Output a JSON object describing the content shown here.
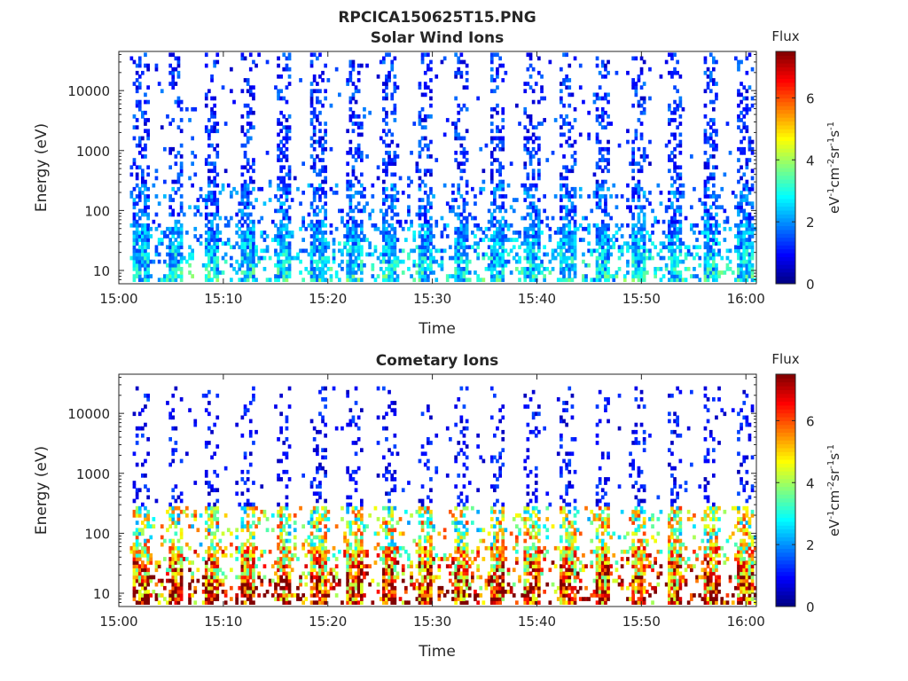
{
  "figure": {
    "title": "RPCICA150625T15.PNG"
  },
  "colors": {
    "axis": "#262626",
    "background": "#ffffff",
    "colormap": [
      "#00007f",
      "#0000ff",
      "#007fff",
      "#00ffff",
      "#7fff7f",
      "#ffff00",
      "#ff7f00",
      "#ff0000",
      "#7f0000"
    ]
  },
  "chart_data": [
    {
      "type": "heatmap",
      "title": "Solar Wind Ions",
      "xlabel": "Time",
      "ylabel": "Energy (eV)",
      "x_ticks": [
        "15:00",
        "15:10",
        "15:20",
        "15:30",
        "15:40",
        "15:50",
        "16:00"
      ],
      "xlim": [
        "15:00",
        "16:01"
      ],
      "y_scale": "log",
      "y_ticks": [
        "10",
        "100",
        "1000",
        "10000"
      ],
      "ylim": [
        6,
        45000
      ],
      "colorbar": {
        "title": "Flux",
        "label": "eV-1cm-2sr-1s-1",
        "ticks": [
          "0",
          "2",
          "4",
          "6"
        ],
        "range": [
          0,
          7.5
        ]
      },
      "pattern": {
        "sweep_period_min": 3.4,
        "first_sweep_min": 1.3,
        "low_energy_flux": 2.2,
        "high_energy_flux": 1.0,
        "density": 0.45,
        "max_energy": 40000
      }
    },
    {
      "type": "heatmap",
      "title": "Cometary Ions",
      "xlabel": "Time",
      "ylabel": "Energy (eV)",
      "x_ticks": [
        "15:00",
        "15:10",
        "15:20",
        "15:30",
        "15:40",
        "15:50",
        "16:00"
      ],
      "xlim": [
        "15:00",
        "16:01"
      ],
      "y_scale": "log",
      "y_ticks": [
        "10",
        "100",
        "1000",
        "10000"
      ],
      "ylim": [
        6,
        45000
      ],
      "colorbar": {
        "title": "Flux",
        "label": "eV-1cm-2sr-1s-1",
        "ticks": [
          "0",
          "2",
          "4",
          "6"
        ],
        "range": [
          0,
          7.5
        ]
      },
      "pattern": {
        "sweep_period_min": 3.4,
        "first_sweep_min": 1.3,
        "low_energy_flux": 5.5,
        "high_energy_flux": 0.8,
        "density": 0.25,
        "max_energy": 25000
      }
    }
  ]
}
